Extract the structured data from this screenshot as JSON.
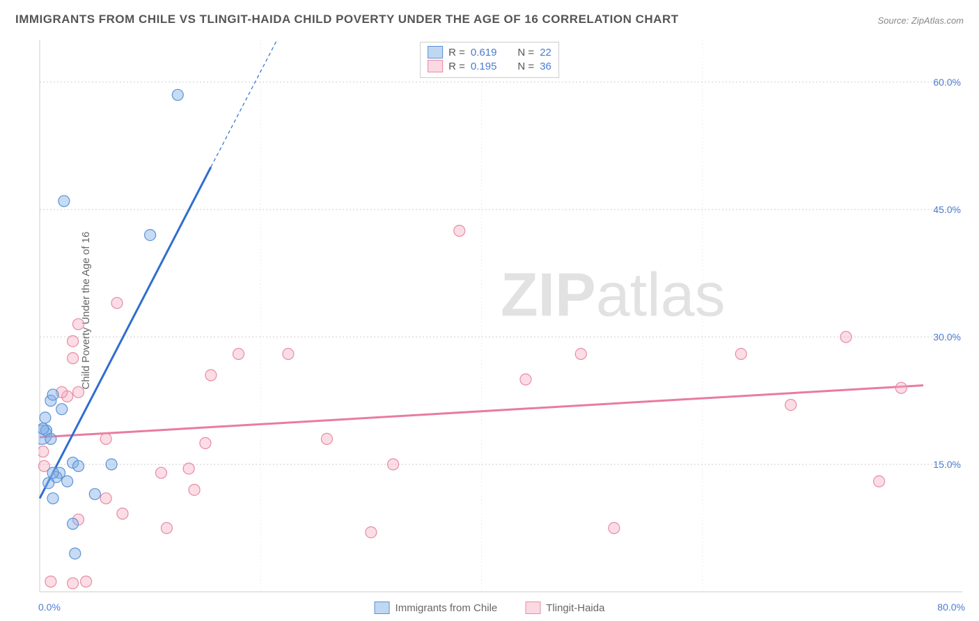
{
  "title": "IMMIGRANTS FROM CHILE VS TLINGIT-HAIDA CHILD POVERTY UNDER THE AGE OF 16 CORRELATION CHART",
  "source": "Source: ZipAtlas.com",
  "ylabel": "Child Poverty Under the Age of 16",
  "watermark": {
    "part1": "ZIP",
    "part2": "atlas"
  },
  "chart": {
    "type": "scatter",
    "xlim": [
      0,
      80
    ],
    "ylim": [
      0,
      65
    ],
    "x_ticks": [
      0,
      80
    ],
    "x_tick_labels": [
      "0.0%",
      "80.0%"
    ],
    "y_grid": [
      15,
      30,
      45,
      60
    ],
    "y_grid_labels": [
      "15.0%",
      "30.0%",
      "45.0%",
      "60.0%"
    ],
    "background_color": "#ffffff",
    "grid_color": "#cccccc",
    "marker_radius": 8,
    "large_marker_radius": 14,
    "series_blue": {
      "name": "Immigrants from Chile",
      "color_fill": "rgba(130,175,230,0.45)",
      "color_stroke": "#5a93d6",
      "R": "0.619",
      "N": "22",
      "regression": {
        "x1": 0,
        "y1": 11,
        "x2": 15.5,
        "y2": 50
      },
      "regression_dash": {
        "x1": 15.5,
        "y1": 50,
        "x2": 21.5,
        "y2": 65
      },
      "points": [
        {
          "x": 0.5,
          "y": 20.5
        },
        {
          "x": 0.6,
          "y": 19
        },
        {
          "x": 1,
          "y": 22.5
        },
        {
          "x": 1.2,
          "y": 23.2
        },
        {
          "x": 1.8,
          "y": 14
        },
        {
          "x": 1.5,
          "y": 13.5
        },
        {
          "x": 0.8,
          "y": 12.8
        },
        {
          "x": 2.5,
          "y": 13
        },
        {
          "x": 3,
          "y": 15.2
        },
        {
          "x": 3.5,
          "y": 14.8
        },
        {
          "x": 6.5,
          "y": 15
        },
        {
          "x": 5,
          "y": 11.5
        },
        {
          "x": 3,
          "y": 8
        },
        {
          "x": 3.2,
          "y": 4.5
        },
        {
          "x": 1.2,
          "y": 11
        },
        {
          "x": 1.2,
          "y": 14
        },
        {
          "x": 2.2,
          "y": 46
        },
        {
          "x": 10,
          "y": 42
        },
        {
          "x": 12.5,
          "y": 58.5
        },
        {
          "x": 1,
          "y": 18
        },
        {
          "x": 2,
          "y": 21.5
        },
        {
          "x": 0.3,
          "y": 19.2
        }
      ],
      "large_point": {
        "x": 0.2,
        "y": 18.5
      }
    },
    "series_pink": {
      "name": "Tlingit-Haida",
      "color_fill": "rgba(245,170,190,0.4)",
      "color_stroke": "#e88aa5",
      "R": "0.195",
      "N": "36",
      "regression": {
        "x1": 0,
        "y1": 18.2,
        "x2": 80,
        "y2": 24.3
      },
      "points": [
        {
          "x": 0.3,
          "y": 16.5
        },
        {
          "x": 0.4,
          "y": 14.8
        },
        {
          "x": 1,
          "y": 1.2
        },
        {
          "x": 3,
          "y": 1
        },
        {
          "x": 4.2,
          "y": 1.2
        },
        {
          "x": 3.5,
          "y": 8.5
        },
        {
          "x": 6,
          "y": 11
        },
        {
          "x": 7.5,
          "y": 9.2
        },
        {
          "x": 11.5,
          "y": 7.5
        },
        {
          "x": 11,
          "y": 14
        },
        {
          "x": 13.5,
          "y": 14.5
        },
        {
          "x": 14,
          "y": 12
        },
        {
          "x": 15,
          "y": 17.5
        },
        {
          "x": 18,
          "y": 28
        },
        {
          "x": 15.5,
          "y": 25.5
        },
        {
          "x": 22.5,
          "y": 28
        },
        {
          "x": 7,
          "y": 34
        },
        {
          "x": 3.5,
          "y": 31.5
        },
        {
          "x": 3,
          "y": 29.5
        },
        {
          "x": 3,
          "y": 27.5
        },
        {
          "x": 2.5,
          "y": 23
        },
        {
          "x": 2,
          "y": 23.5
        },
        {
          "x": 3.5,
          "y": 23.5
        },
        {
          "x": 38,
          "y": 42.5
        },
        {
          "x": 26,
          "y": 18
        },
        {
          "x": 30,
          "y": 7
        },
        {
          "x": 32,
          "y": 15
        },
        {
          "x": 44,
          "y": 25
        },
        {
          "x": 49,
          "y": 28
        },
        {
          "x": 52,
          "y": 7.5
        },
        {
          "x": 63.5,
          "y": 28
        },
        {
          "x": 68,
          "y": 22
        },
        {
          "x": 73,
          "y": 30
        },
        {
          "x": 78,
          "y": 24
        },
        {
          "x": 76,
          "y": 13
        },
        {
          "x": 6,
          "y": 18
        }
      ]
    }
  },
  "top_legend": {
    "rows": [
      {
        "swatch": "blue",
        "r_label": "R =",
        "r_val": "0.619",
        "n_label": "N =",
        "n_val": "22"
      },
      {
        "swatch": "pink",
        "r_label": "R =",
        "r_val": "0.195",
        "n_label": "N =",
        "n_val": "36"
      }
    ]
  },
  "bottom_legend": {
    "items": [
      {
        "swatch": "blue",
        "label": "Immigrants from Chile"
      },
      {
        "swatch": "pink",
        "label": "Tlingit-Haida"
      }
    ]
  }
}
